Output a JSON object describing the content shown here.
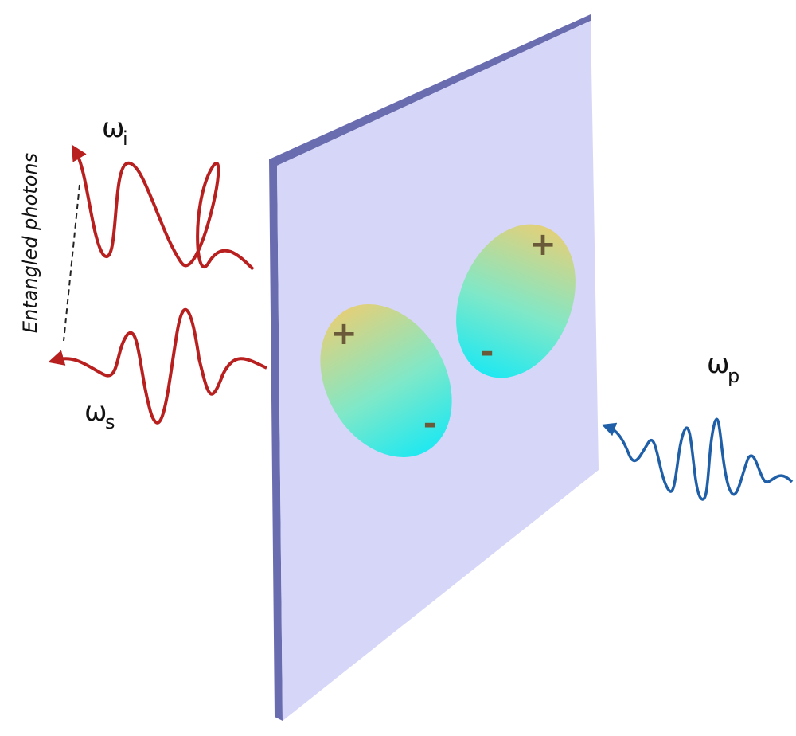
{
  "label": "Entangled photons",
  "idler": {
    "symbol": "ω",
    "subscript": "i"
  },
  "signal": {
    "symbol": "ω",
    "subscript": "s"
  },
  "pump": {
    "symbol": "ω",
    "subscript": "p"
  },
  "dipoles": [
    {
      "plus": "+",
      "minus": "-"
    },
    {
      "plus": "+",
      "minus": "-"
    }
  ]
}
